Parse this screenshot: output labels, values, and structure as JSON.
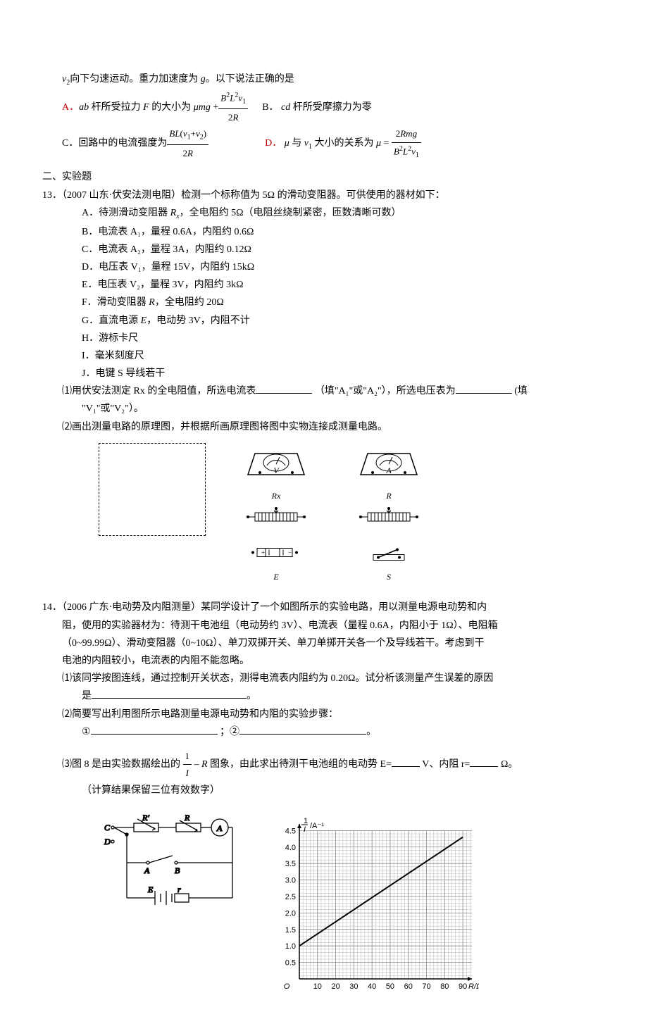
{
  "q12": {
    "preamble": "v₂向下匀速运动。重力加速度为 g。以下说法正确的是",
    "optA_prefix": "A．",
    "optA_text1": "ab 杆所受拉力 F 的大小为 ",
    "optA_frac_num": "B²L²v₁",
    "optA_frac_den": "2R",
    "optA_mu": "μmg + ",
    "optB_prefix": "B．",
    "optB_text": "cd 杆所受摩擦力为零",
    "optC_prefix": "C．",
    "optC_text": "回路中的电流强度为 ",
    "optC_frac_num": "BL(v₁+v₂)",
    "optC_frac_den": "2R",
    "optD_prefix": "D．",
    "optD_text": "μ 与 v₁ 大小的关系为 μ = ",
    "optD_frac_num": "2Rmg",
    "optD_frac_den": "B²L²v₁"
  },
  "section2_title": "二、实验题",
  "q13": {
    "stem": "13．（2007 山东·伏安法测电阻）检测一个标称值为 5Ω 的滑动变阻器。可供使用的器材如下：",
    "items": {
      "A": "A．待测滑动变阻器 Rx，全电阻约 5Ω（电阻丝绕制紧密，匝数清晰可数）",
      "B": "B．电流表 A₁，量程 0.6A，内阻约 0.6Ω",
      "C": "C．电流表 A₂，量程 3A，内阻约 0.12Ω",
      "D": "D．电压表 V₁，量程 15V，内阻约 15kΩ",
      "E": "E．电压表 V₂，量程 3V，内阻约 3kΩ",
      "F": "F．滑动变阻器 R，全电阻约 20Ω",
      "G": "G．直流电源 E，电动势 3V，内阻不计",
      "H": "H．游标卡尺",
      "I": "I．毫米刻度尺",
      "J": "J．电键 S 导线若干"
    },
    "part1_a": "⑴用伏安法测定 Rx 的全电阻值，所选电流表",
    "part1_b": "（填\"A₁\"或\"A₂\"），所选电压表为",
    "part1_c": "(填",
    "part1_d": "\"V₁\"或\"V₂\"）。",
    "part2": "⑵画出测量电路的原理图，并根据所画原理图将图中实物连接成测量电路。",
    "labels": {
      "V": "V",
      "A": "A",
      "Rx": "Rx",
      "R": "R",
      "E": "E",
      "S": "S"
    }
  },
  "q14": {
    "stem1": "14．（2006 广东·电动势及内阻测量）某同学设计了一个如图所示的实验电路，用以测量电源电动势和内",
    "stem2": "阻，使用的实验器材为：待测干电池组（电动势约 3V）、电流表（量程 0.6A，内阻小于 1Ω）、电阻箱",
    "stem3": "（0~99.99Ω）、滑动变阻器（0~10Ω）、单刀双掷开关、单刀单掷开关各一个及导线若干。考虑到干",
    "stem4": "电池的内阻较小，电流表的内阻不能忽略。",
    "part1_a": "⑴该同学按图连线，通过控制开关状态，测得电流表内阻约为 0.20Ω。试分析该测量产生误差的原因",
    "part1_b": "是",
    "part1_c": "。",
    "part2_a": "⑵简要写出利用图所示电路测量电源电动势和内阻的实验步骤：",
    "part2_b": "①",
    "part2_c": "；②",
    "part2_d": "。",
    "part3_a": "⑶图 8 是由实验数据绘出的",
    "part3_b": "图象，由此求出待测干电池组的电动势 E=",
    "part3_c": "V、内阻 r=",
    "part3_d": "Ω。",
    "part3_frac_num": "1",
    "part3_frac_den": "I",
    "part3_mid": " – R ",
    "part3_note": "（计算结果保留三位有效数字）",
    "circuit_labels": {
      "C": "C",
      "D": "D",
      "R1": "R'",
      "R2": "R",
      "A_meter": "A",
      "A_pt": "A",
      "B_pt": "B",
      "E": "E",
      "r": "r"
    }
  },
  "graph": {
    "ylabel_num": "1",
    "ylabel_den": "I",
    "ylabel_unit": "/A⁻¹",
    "xlabel": "R/Ω",
    "yticks": [
      "0.5",
      "1.0",
      "1.5",
      "2.0",
      "2.5",
      "3.0",
      "3.5",
      "4.0",
      "4.5"
    ],
    "xticks": [
      "10",
      "20",
      "30",
      "40",
      "50",
      "60",
      "70",
      "80",
      "90"
    ],
    "xlim": [
      0,
      95
    ],
    "ylim": [
      0,
      4.7
    ],
    "line_points": [
      [
        0,
        1.0
      ],
      [
        90,
        4.3
      ]
    ],
    "grid_color": "#888888",
    "line_color": "#000000",
    "axis_color": "#000000",
    "bg_color": "#ffffff"
  }
}
